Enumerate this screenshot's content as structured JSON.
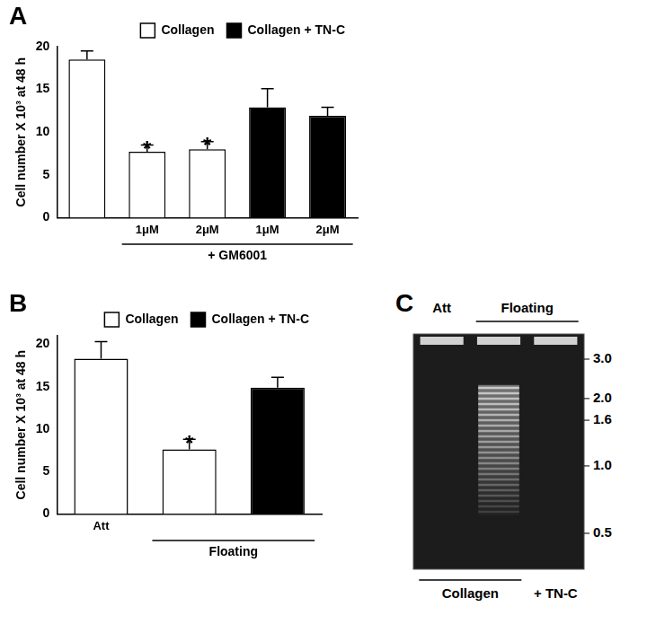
{
  "chart_data": [
    {
      "type": "bar",
      "title": "A",
      "categories": [
        null,
        "1μM",
        "2μM",
        "1μM",
        "2μM"
      ],
      "group_labels": [
        {
          "text": "+ GM6001",
          "from": 1,
          "to": 4
        }
      ],
      "y_label": "Cell number X 10³ at 48 h",
      "ylim": [
        0,
        20
      ],
      "yticks": [
        0,
        5,
        10,
        15,
        20
      ],
      "grid": false,
      "legend": "top",
      "series": [
        {
          "name": "Collagen",
          "color": "#ffffff",
          "values": [
            18.5,
            7.7,
            8.0,
            null,
            null
          ],
          "errors": [
            1.0,
            0.8,
            0.9,
            null,
            null
          ],
          "significance": [
            null,
            "*",
            "*",
            null,
            null
          ]
        },
        {
          "name": "Collagen + TN-C",
          "color": "#000000",
          "values": [
            null,
            null,
            null,
            12.9,
            11.9
          ],
          "errors": [
            null,
            null,
            null,
            2.2,
            1.0
          ],
          "significance": [
            null,
            null,
            null,
            null,
            null
          ]
        }
      ]
    },
    {
      "type": "bar",
      "title": "B",
      "categories": [
        "Att",
        null,
        null
      ],
      "group_labels": [
        {
          "text": "Floating",
          "from": 1,
          "to": 2
        }
      ],
      "y_label": "Cell number X 10³ at 48 h",
      "ylim": [
        0,
        21
      ],
      "yticks": [
        0,
        5,
        10,
        15,
        20
      ],
      "grid": false,
      "legend": "top",
      "series": [
        {
          "name": "Collagen",
          "color": "#ffffff",
          "values": [
            18.3,
            7.6,
            null
          ],
          "errors": [
            2.0,
            1.2,
            null
          ],
          "significance": [
            null,
            "*",
            null
          ]
        },
        {
          "name": "Collagen + TN-C",
          "color": "#000000",
          "values": [
            null,
            null,
            14.9
          ],
          "errors": [
            null,
            null,
            1.2
          ],
          "significance": [
            null,
            null,
            null
          ]
        }
      ]
    }
  ],
  "gel": {
    "title": "C",
    "lanes": 3,
    "lane_labels_top": [
      {
        "text": "Att",
        "from": 0,
        "to": 0
      },
      {
        "text": "Floating",
        "from": 1,
        "to": 2
      }
    ],
    "lane_labels_bottom": [
      {
        "text": "Collagen",
        "from": 0,
        "to": 1
      },
      {
        "text": "+ TN-C",
        "from": 2,
        "to": 2
      }
    ],
    "size_markers": [
      {
        "value": 3,
        "label": "3.0"
      },
      {
        "value": 2,
        "label": "2.0"
      },
      {
        "value": 1.6,
        "label": "1.6"
      },
      {
        "value": 1,
        "label": "1.0"
      },
      {
        "value": 0.5,
        "label": "0.5"
      }
    ]
  }
}
